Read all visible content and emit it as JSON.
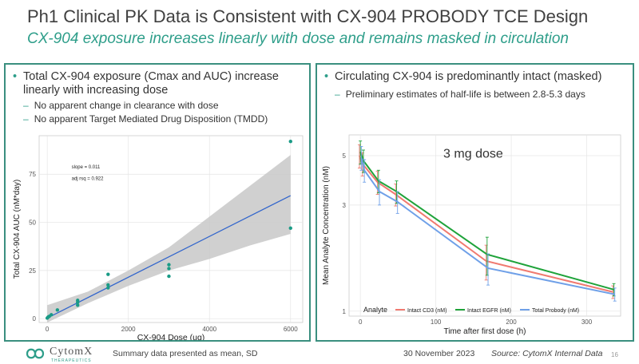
{
  "slide": {
    "title": "Ph1 Clinical PK Data is Consistent with CX-904 PROBODY TCE Design",
    "subtitle": "CX-904 exposure increases linearly with dose and remains masked in circulation",
    "page_number": "16"
  },
  "left_panel": {
    "bullet_line1": "Total CX-904 exposure (Cmax and AUC) increase",
    "bullet_line2": "linearly with increasing dose",
    "sub1": "No apparent change in clearance with dose",
    "sub2": "No apparent Target Mediated Drug Disposition (TMDD)"
  },
  "right_panel": {
    "bullet": "Circulating CX-904 is predominantly intact (masked)",
    "sub1": "Preliminary estimates of half-life is between 2.8-5.3 days"
  },
  "footer": {
    "logo_name": "CytomX",
    "logo_sub": "THERAPEUTICS",
    "note": "Summary data presented as mean, SD",
    "date": "30 November 2023",
    "source": "Source: CytomX Internal Data"
  },
  "colors": {
    "teal": "#2e9e8a",
    "blue_fit": "#3366cc",
    "ci_band": "#c8c8c8",
    "red": "#f07a70",
    "green": "#1fa33a",
    "blue": "#6fa0e8"
  },
  "chart_data": [
    {
      "type": "scatter",
      "title": "",
      "xlabel": "CX-904 Dose (ug)",
      "ylabel": "Total CX-904 AUC (nM*day)",
      "xlim": [
        -200,
        6300
      ],
      "ylim": [
        -2,
        95
      ],
      "xticks": [
        0,
        2000,
        4000,
        6000
      ],
      "yticks": [
        0,
        25,
        50,
        75
      ],
      "xtick_labels": [
        "0",
        "2000",
        "4000",
        "6000"
      ],
      "ytick_labels": [
        "0",
        "25",
        "50",
        "75"
      ],
      "annotations": [
        "slope = 0.011",
        "adj rsq = 0.922"
      ],
      "points": [
        {
          "x": 0,
          "y": 0.3
        },
        {
          "x": 20,
          "y": 0.8
        },
        {
          "x": 50,
          "y": 1.2
        },
        {
          "x": 100,
          "y": 2
        },
        {
          "x": 250,
          "y": 4.5
        },
        {
          "x": 750,
          "y": 7
        },
        {
          "x": 750,
          "y": 8.5
        },
        {
          "x": 750,
          "y": 9.5
        },
        {
          "x": 1500,
          "y": 16
        },
        {
          "x": 1500,
          "y": 17.5
        },
        {
          "x": 1500,
          "y": 23
        },
        {
          "x": 3000,
          "y": 22
        },
        {
          "x": 3000,
          "y": 26
        },
        {
          "x": 3000,
          "y": 28
        },
        {
          "x": 6000,
          "y": 47
        },
        {
          "x": 6000,
          "y": 92
        }
      ],
      "fit": {
        "slope": 0.0106,
        "intercept": 0.3
      },
      "ci_band": [
        {
          "x": 0,
          "lo": -2,
          "hi": 7
        },
        {
          "x": 1000,
          "lo": 8,
          "hi": 14
        },
        {
          "x": 2000,
          "lo": 17,
          "hi": 25
        },
        {
          "x": 3000,
          "lo": 25,
          "hi": 37
        },
        {
          "x": 4000,
          "lo": 31,
          "hi": 53
        },
        {
          "x": 5000,
          "lo": 38,
          "hi": 69
        },
        {
          "x": 6000,
          "lo": 44,
          "hi": 85
        }
      ]
    },
    {
      "type": "line",
      "title": "3 mg dose",
      "xlabel": "Time after first dose (h)",
      "ylabel": "Mean Analyte Concentration (nM)",
      "xscale": "linear",
      "yscale": "log",
      "xlim": [
        -15,
        345
      ],
      "ylim": [
        0.95,
        6.2
      ],
      "xticks": [
        0,
        100,
        200,
        300
      ],
      "yticks": [
        1,
        3,
        5
      ],
      "xtick_labels": [
        "0",
        "100",
        "200",
        "300"
      ],
      "ytick_labels": [
        "1",
        "3",
        "5"
      ],
      "legend_title": "Analyte",
      "legend_position": "bottom",
      "x": [
        0,
        4,
        24,
        48,
        168,
        336
      ],
      "series": [
        {
          "name": "Intact CD3 (nM)",
          "color": "#f07a70",
          "values": [
            5.0,
            4.6,
            3.8,
            3.35,
            1.68,
            1.22
          ],
          "sd": [
            0.6,
            0.55,
            0.45,
            0.38,
            0.3,
            0.08
          ]
        },
        {
          "name": "Intact EGFR (nM)",
          "color": "#1fa33a",
          "values": [
            5.2,
            4.75,
            3.85,
            3.45,
            1.8,
            1.25
          ],
          "sd": [
            0.62,
            0.55,
            0.45,
            0.4,
            0.35,
            0.08
          ]
        },
        {
          "name": "Total Probody (nM)",
          "color": "#6fa0e8",
          "values": [
            4.9,
            4.3,
            3.45,
            3.1,
            1.56,
            1.19
          ],
          "sd": [
            0.6,
            0.5,
            0.45,
            0.35,
            0.25,
            0.08
          ]
        }
      ]
    }
  ]
}
